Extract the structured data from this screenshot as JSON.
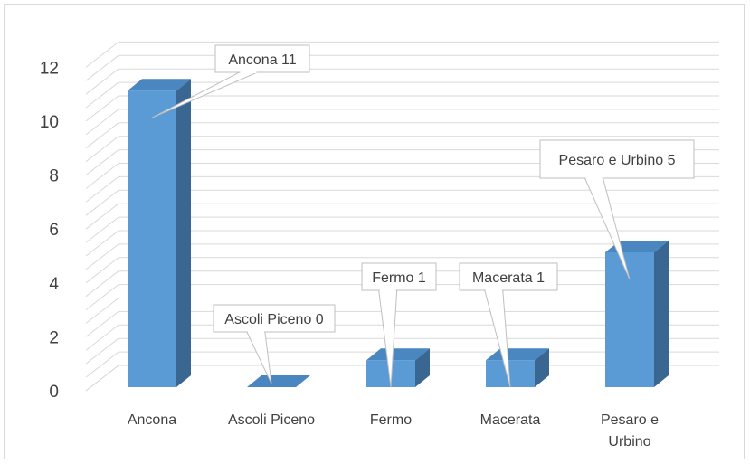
{
  "chart_data": {
    "type": "bar",
    "style": "3d-column",
    "categories": [
      "Ancona",
      "Ascoli Piceno",
      "Fermo",
      "Macerata",
      "Pesaro e Urbino"
    ],
    "category_lines": [
      [
        "Ancona"
      ],
      [
        "Ascoli Piceno"
      ],
      [
        "Fermo"
      ],
      [
        "Macerata"
      ],
      [
        "Pesaro e",
        "Urbino"
      ]
    ],
    "values": [
      11,
      0,
      1,
      1,
      5
    ],
    "data_labels": [
      "Ancona 11",
      "Ascoli Piceno 0",
      "Fermo 1",
      "Macerata 1",
      "Pesaro e Urbino 5"
    ],
    "title": "",
    "xlabel": "",
    "ylabel": "",
    "ylim": [
      0,
      12
    ],
    "yticks": [
      0,
      2,
      4,
      6,
      8,
      10,
      12
    ],
    "grid": true,
    "legend": "none",
    "colors": {
      "bar_front": "#5b9bd5",
      "bar_side": "#3a6791",
      "bar_top": "#4a86bf",
      "grid": "#d9d9d9",
      "text": "#404040",
      "label_border": "#bfbfbf"
    }
  }
}
